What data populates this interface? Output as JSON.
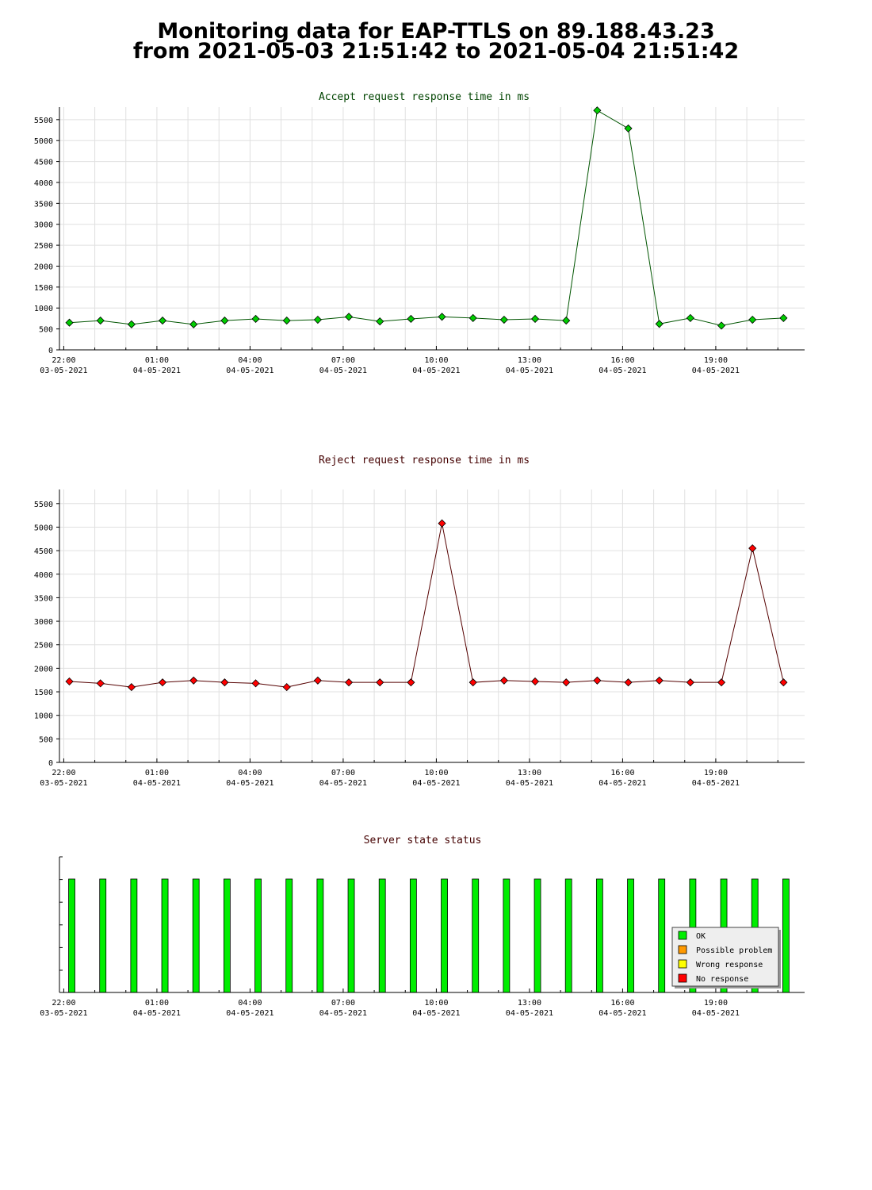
{
  "page": {
    "title_line1": "Monitoring data for EAP-TTLS on 89.188.43.23",
    "title_line2": "from 2021-05-03 21:51:42 to 2021-05-04 21:51:42"
  },
  "x_ticks": [
    {
      "time": "22:00",
      "date": "03-05-2021"
    },
    {
      "time": "01:00",
      "date": "04-05-2021"
    },
    {
      "time": "04:00",
      "date": "04-05-2021"
    },
    {
      "time": "07:00",
      "date": "04-05-2021"
    },
    {
      "time": "10:00",
      "date": "04-05-2021"
    },
    {
      "time": "13:00",
      "date": "04-05-2021"
    },
    {
      "time": "16:00",
      "date": "04-05-2021"
    },
    {
      "time": "19:00",
      "date": "04-05-2021"
    }
  ],
  "chart_data": [
    {
      "type": "line",
      "title": "Accept request response time in ms",
      "color": "#00cc00",
      "title_color": "#004400",
      "line_color": "#005500",
      "x": [
        "2021-05-03 21:51",
        "2021-05-03 22:51",
        "2021-05-03 23:51",
        "2021-05-04 00:51",
        "2021-05-04 01:51",
        "2021-05-04 02:51",
        "2021-05-04 03:51",
        "2021-05-04 04:51",
        "2021-05-04 05:51",
        "2021-05-04 06:51",
        "2021-05-04 07:51",
        "2021-05-04 08:51",
        "2021-05-04 09:51",
        "2021-05-04 10:51",
        "2021-05-04 11:51",
        "2021-05-04 12:51",
        "2021-05-04 13:51",
        "2021-05-04 14:51",
        "2021-05-04 15:51",
        "2021-05-04 16:51",
        "2021-05-04 17:51",
        "2021-05-04 18:51",
        "2021-05-04 19:51",
        "2021-05-04 20:51"
      ],
      "values": [
        650,
        700,
        610,
        700,
        610,
        700,
        740,
        700,
        720,
        790,
        680,
        740,
        790,
        760,
        720,
        740,
        700,
        5720,
        5290,
        620,
        760,
        580,
        720,
        760
      ],
      "ylim": [
        0,
        5800
      ],
      "yticks": [
        0,
        500,
        1000,
        1500,
        2000,
        2500,
        3000,
        3500,
        4000,
        4500,
        5000,
        5500
      ],
      "grid": true
    },
    {
      "type": "line",
      "title": "Reject request response time in ms",
      "color": "#ff0000",
      "title_color": "#440000",
      "line_color": "#550000",
      "x": [
        "2021-05-03 21:51",
        "2021-05-03 22:51",
        "2021-05-03 23:51",
        "2021-05-04 00:51",
        "2021-05-04 01:51",
        "2021-05-04 02:51",
        "2021-05-04 03:51",
        "2021-05-04 04:51",
        "2021-05-04 05:51",
        "2021-05-04 06:51",
        "2021-05-04 07:51",
        "2021-05-04 08:51",
        "2021-05-04 09:51",
        "2021-05-04 10:51",
        "2021-05-04 11:51",
        "2021-05-04 12:51",
        "2021-05-04 13:51",
        "2021-05-04 14:51",
        "2021-05-04 15:51",
        "2021-05-04 16:51",
        "2021-05-04 17:51",
        "2021-05-04 18:51",
        "2021-05-04 19:51",
        "2021-05-04 20:51"
      ],
      "values": [
        1720,
        1680,
        1600,
        1700,
        1740,
        1700,
        1680,
        1600,
        1740,
        1700,
        1700,
        1700,
        5080,
        1700,
        1740,
        1720,
        1700,
        1740,
        1700,
        1740,
        1700,
        1700,
        4550,
        1700
      ],
      "ylim": [
        0,
        5800
      ],
      "yticks": [
        0,
        500,
        1000,
        1500,
        2000,
        2500,
        3000,
        3500,
        4000,
        4500,
        5000,
        5500
      ],
      "grid": true
    },
    {
      "type": "bar",
      "title": "Server state status",
      "title_color": "#440000",
      "x": [
        "2021-05-03 21:51",
        "2021-05-03 22:51",
        "2021-05-03 23:51",
        "2021-05-04 00:51",
        "2021-05-04 01:51",
        "2021-05-04 02:51",
        "2021-05-04 03:51",
        "2021-05-04 04:51",
        "2021-05-04 05:51",
        "2021-05-04 06:51",
        "2021-05-04 07:51",
        "2021-05-04 08:51",
        "2021-05-04 09:51",
        "2021-05-04 10:51",
        "2021-05-04 11:51",
        "2021-05-04 12:51",
        "2021-05-04 13:51",
        "2021-05-04 14:51",
        "2021-05-04 15:51",
        "2021-05-04 16:51",
        "2021-05-04 17:51",
        "2021-05-04 18:51",
        "2021-05-04 19:51",
        "2021-05-04 20:51"
      ],
      "status": [
        "OK",
        "OK",
        "OK",
        "OK",
        "OK",
        "OK",
        "OK",
        "OK",
        "OK",
        "OK",
        "OK",
        "OK",
        "OK",
        "OK",
        "OK",
        "OK",
        "OK",
        "OK",
        "OK",
        "OK",
        "OK",
        "OK",
        "OK",
        "OK"
      ],
      "legend": [
        {
          "label": "OK",
          "color": "#00ee00"
        },
        {
          "label": "Possible problem",
          "color": "#ff9900"
        },
        {
          "label": "Wrong response",
          "color": "#ffff00"
        },
        {
          "label": "No response",
          "color": "#ff0000"
        }
      ],
      "legend_position": "bottom-right",
      "grid": false
    }
  ]
}
